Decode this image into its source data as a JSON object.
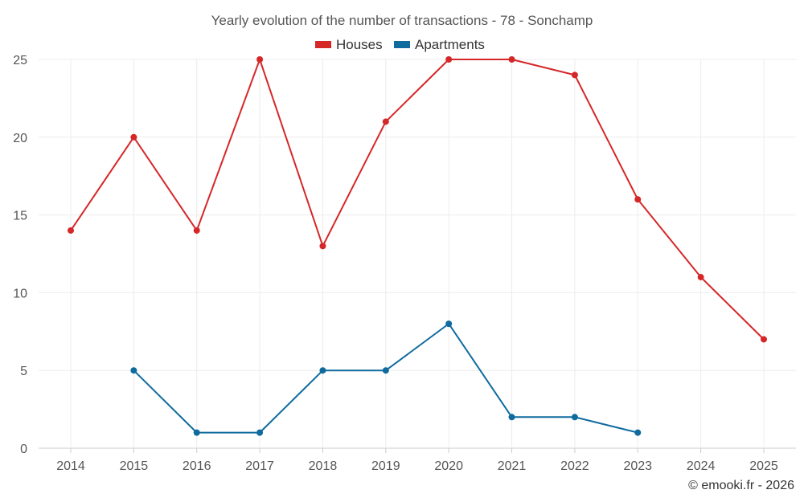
{
  "chart_data": {
    "type": "line",
    "title": "Yearly evolution of the number of transactions - 78 - Sonchamp",
    "categories": [
      "2014",
      "2015",
      "2016",
      "2017",
      "2018",
      "2019",
      "2020",
      "2021",
      "2022",
      "2023",
      "2024",
      "2025"
    ],
    "series": [
      {
        "name": "Houses",
        "color": "#d62728",
        "values": [
          14,
          20,
          14,
          25,
          13,
          21,
          25,
          25,
          24,
          16,
          11,
          7
        ]
      },
      {
        "name": "Apartments",
        "color": "#0f6b9e",
        "values": [
          null,
          5,
          1,
          1,
          5,
          5,
          8,
          2,
          2,
          1,
          null,
          null
        ]
      }
    ],
    "xlabel": "",
    "ylabel": "",
    "ylim": [
      0,
      25
    ],
    "yticks": [
      "0",
      "5",
      "10",
      "15",
      "20",
      "25"
    ],
    "grid": true,
    "legend_position": "top-center"
  },
  "credit": "© emooki.fr - 2026"
}
